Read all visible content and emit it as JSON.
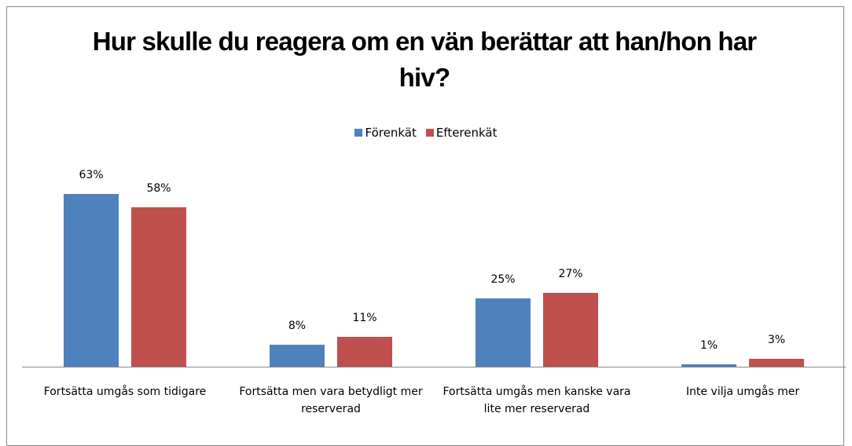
{
  "chart_data": {
    "type": "bar",
    "title": "Hur skulle du reagera om en vän berättar att han/hon har hiv?",
    "categories": [
      "Fortsätta umgås som tidigare",
      "Fortsätta men vara betydligt mer reserverad",
      "Fortsätta umgås men kanske vara lite mer reserverad",
      "Inte vilja umgås mer"
    ],
    "series": [
      {
        "name": "Förenkät",
        "color": "#4f81bd",
        "values": [
          63,
          8,
          25,
          1
        ],
        "value_labels": [
          "63%",
          "8%",
          "25%",
          "1%"
        ]
      },
      {
        "name": "Efterenkät",
        "color": "#c0504d",
        "values": [
          58,
          11,
          27,
          3
        ],
        "value_labels": [
          "58%",
          "11%",
          "27%",
          "3%"
        ]
      }
    ],
    "legend": "top"
  }
}
